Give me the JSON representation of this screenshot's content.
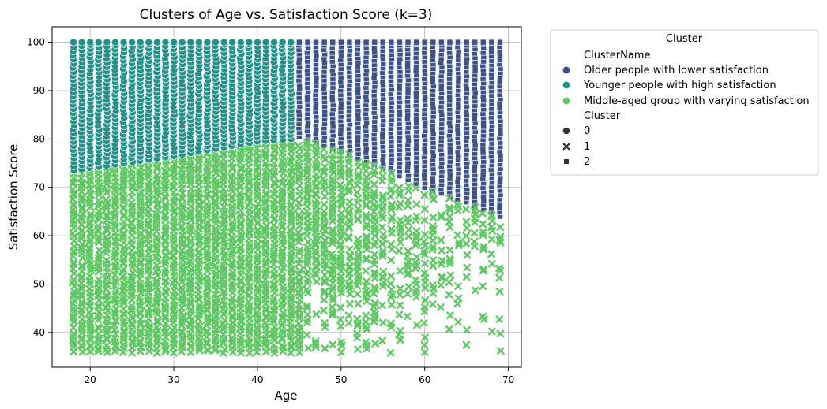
{
  "chart_data": {
    "type": "scatter",
    "title": "Clusters of Age vs. Satisfaction Score (k=3)",
    "xlabel": "Age",
    "ylabel": "Satisfaction Score",
    "xlim": [
      15.45,
      71.55
    ],
    "ylim": [
      32.8,
      103.2
    ],
    "xticks": [
      20,
      30,
      40,
      50,
      60,
      70
    ],
    "yticks": [
      40,
      50,
      60,
      70,
      80,
      90,
      100
    ],
    "grid": true,
    "legend": {
      "title": "Cluster",
      "placement": "outside-upper-right",
      "hue_title": "ClusterName",
      "style_title": "Cluster",
      "hue_entries": [
        {
          "label": "Older people with lower satisfaction",
          "color": "#3b528b"
        },
        {
          "label": "Younger people with high satisfaction",
          "color": "#21918c"
        },
        {
          "label": "Middle-aged group with varying satisfaction",
          "color": "#5ec962"
        }
      ],
      "style_entries": [
        {
          "label": "0",
          "marker": "circle"
        },
        {
          "label": "1",
          "marker": "x"
        },
        {
          "label": "2",
          "marker": "square"
        }
      ]
    },
    "series": [
      {
        "name": "Younger people with high satisfaction",
        "cluster": "0",
        "marker": "circle",
        "color": "#21918c",
        "age_range": [
          18,
          44
        ],
        "satisfaction_min_at_age": [
          [
            18,
            73.5
          ],
          [
            30,
            76.5
          ],
          [
            40,
            79.5
          ],
          [
            44,
            80
          ]
        ],
        "satisfaction_max": 100
      },
      {
        "name": "Middle-aged group with varying satisfaction",
        "cluster": "1",
        "marker": "x",
        "color": "#5ec962",
        "age_range": [
          18,
          69
        ],
        "satisfaction_min": 36,
        "satisfaction_max_at_age": [
          [
            18,
            73.5
          ],
          [
            30,
            77
          ],
          [
            40,
            80
          ],
          [
            45,
            80.5
          ],
          [
            50,
            77.5
          ],
          [
            55,
            74
          ],
          [
            60,
            70
          ],
          [
            65,
            67
          ],
          [
            69,
            64
          ]
        ]
      },
      {
        "name": "Older people with lower satisfaction",
        "cluster": "2",
        "marker": "square",
        "color": "#3b528b",
        "age_range": [
          45,
          69
        ],
        "satisfaction_min_at_age": [
          [
            45,
            80.5
          ],
          [
            50,
            77.5
          ],
          [
            55,
            74
          ],
          [
            60,
            70
          ],
          [
            65,
            67
          ],
          [
            69,
            64
          ]
        ],
        "satisfaction_max": 100
      }
    ]
  }
}
